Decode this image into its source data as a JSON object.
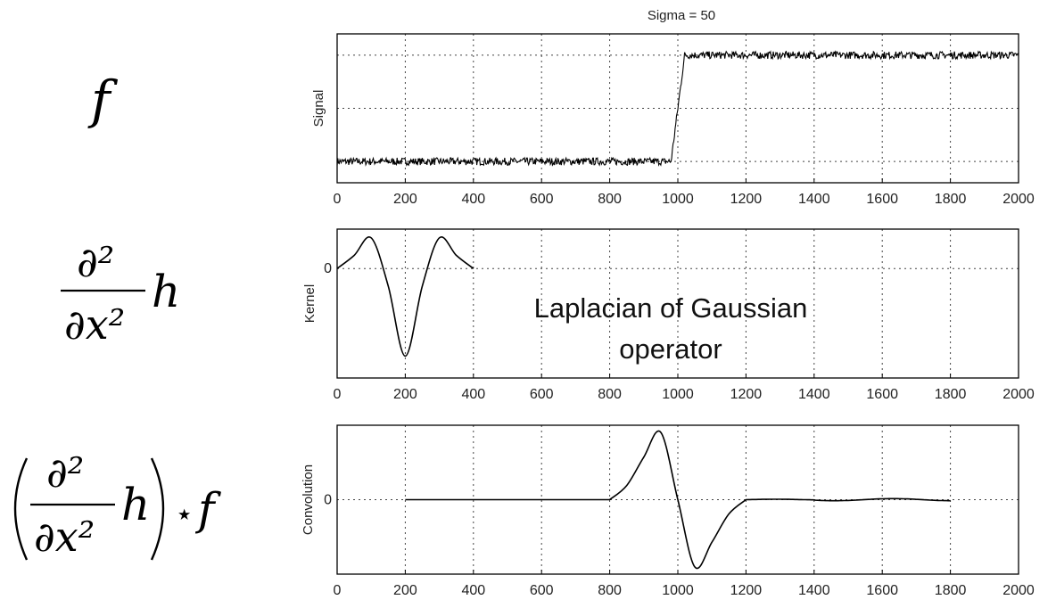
{
  "formulas": {
    "f_symbol": "f",
    "partial2": "∂²",
    "dx2": "∂x²",
    "h": "h",
    "star": "⋆"
  },
  "chart_data": [
    {
      "type": "line",
      "title": "Sigma = 50",
      "ylabel": "Signal",
      "xlim": [
        0,
        2000
      ],
      "ylim": [
        -0.2,
        1.2
      ],
      "xticks": [
        0,
        200,
        400,
        600,
        800,
        1000,
        1200,
        1400,
        1600,
        1800,
        2000
      ],
      "ygrid": [
        0,
        0.5,
        1
      ],
      "grid": true,
      "series": [
        {
          "x": [
            0,
            980,
            1020,
            2000
          ],
          "y": [
            0,
            0,
            1,
            1
          ]
        }
      ]
    },
    {
      "type": "line",
      "ylabel": "Kernel",
      "xlim": [
        0,
        2000
      ],
      "ylim": [
        -1.25,
        0.45
      ],
      "xticks": [
        0,
        200,
        400,
        600,
        800,
        1000,
        1200,
        1400,
        1600,
        1800,
        2000
      ],
      "yticks": [
        0
      ],
      "grid": true,
      "annotation": "Laplacian of Gaussian operator",
      "series": [
        {
          "x": [
            0,
            50,
            100,
            150,
            200,
            250,
            300,
            350,
            400
          ],
          "y": [
            0.0,
            0.15,
            0.35,
            -0.2,
            -1.0,
            -0.2,
            0.35,
            0.15,
            0.0
          ]
        }
      ]
    },
    {
      "type": "line",
      "ylabel": "Convolution",
      "xlim": [
        0,
        2000
      ],
      "ylim": [
        -1.05,
        1.05
      ],
      "xticks": [
        0,
        200,
        400,
        600,
        800,
        1000,
        1200,
        1400,
        1600,
        1800,
        2000
      ],
      "yticks": [
        0
      ],
      "grid": true,
      "series": [
        {
          "x": [
            200,
            800,
            850,
            900,
            950,
            1000,
            1050,
            1100,
            1150,
            1200,
            1800
          ],
          "y": [
            0,
            0,
            0.2,
            0.6,
            0.95,
            0.0,
            -0.95,
            -0.6,
            -0.2,
            0,
            0
          ]
        }
      ]
    }
  ]
}
